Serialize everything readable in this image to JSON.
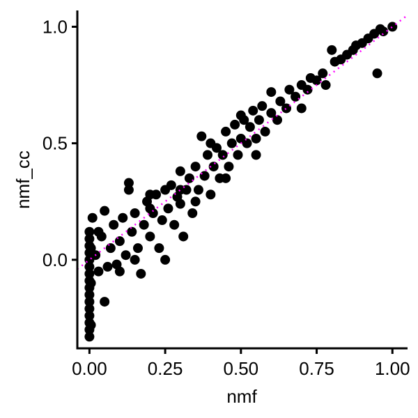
{
  "chart_data": {
    "type": "scatter",
    "x_label": "nmf",
    "y_label": "nmf_cc",
    "color": "#000000",
    "reference_line": {
      "slope": 1,
      "intercept": 0,
      "color": "#ff00ff"
    },
    "xlim": [
      -0.04,
      1.05
    ],
    "ylim": [
      -0.38,
      1.07
    ],
    "xticks": [
      {
        "value": 0,
        "label": "0.00"
      },
      {
        "value": 0.25,
        "label": "0.25"
      },
      {
        "value": 0.5,
        "label": "0.50"
      },
      {
        "value": 0.75,
        "label": "0.75"
      },
      {
        "value": 1,
        "label": "1.00"
      }
    ],
    "yticks": [
      {
        "value": 0,
        "label": "0.0"
      },
      {
        "value": 0.5,
        "label": "0.5"
      },
      {
        "value": 1,
        "label": "1.0"
      }
    ],
    "x": [
      0,
      0,
      0,
      0,
      0,
      0,
      0,
      0,
      0,
      0,
      0,
      0,
      0,
      0,
      0,
      0,
      0.005,
      0.005,
      0.005,
      0.02,
      0.03,
      0.04,
      0.05,
      0.01,
      0.03,
      0.05,
      0.06,
      0.07,
      0.08,
      0.09,
      0.1,
      0.11,
      0.12,
      0.13,
      0.13,
      0.14,
      0.15,
      0.16,
      0.17,
      0.18,
      0.19,
      0.2,
      0.21,
      0.22,
      0.23,
      0.24,
      0.25,
      0.25,
      0.26,
      0.27,
      0.28,
      0.29,
      0.3,
      0.3,
      0.31,
      0.32,
      0.33,
      0.34,
      0.35,
      0.36,
      0.37,
      0.38,
      0.39,
      0.4,
      0.41,
      0.42,
      0.43,
      0.44,
      0.45,
      0.46,
      0.47,
      0.48,
      0.49,
      0.5,
      0.51,
      0.52,
      0.53,
      0.54,
      0.55,
      0.56,
      0.57,
      0.58,
      0.6,
      0.62,
      0.63,
      0.65,
      0.66,
      0.68,
      0.7,
      0.7,
      0.72,
      0.73,
      0.75,
      0.77,
      0.78,
      0.8,
      0.81,
      0.83,
      0.85,
      0.87,
      0.88,
      0.9,
      0.92,
      0.94,
      0.95,
      0.96,
      0.97,
      1.0,
      0.2,
      0.35,
      0.45,
      0.55,
      0.15,
      0.1,
      0.6,
      0.5,
      0.4,
      0.3,
      0.2
    ],
    "values": [
      -0.33,
      -0.3,
      -0.27,
      -0.24,
      -0.21,
      -0.18,
      -0.15,
      -0.12,
      -0.09,
      -0.06,
      -0.03,
      0,
      0.03,
      0.06,
      0.09,
      0.12,
      -0.28,
      -0.1,
      0.05,
      0.02,
      -0.05,
      0.1,
      0.21,
      0.18,
      0.12,
      -0.18,
      -0.03,
      0.05,
      0.15,
      -0.02,
      0.08,
      0.18,
      0.02,
      0.33,
      0.3,
      0.12,
      0.2,
      0.05,
      -0.06,
      0.15,
      0.25,
      0.1,
      0.2,
      0.28,
      0.05,
      0.17,
      0.0,
      0.3,
      0.22,
      0.32,
      0.15,
      0.27,
      0.38,
      0.24,
      0.1,
      0.3,
      0.35,
      0.2,
      0.4,
      0.3,
      0.53,
      0.36,
      0.45,
      0.28,
      0.4,
      0.48,
      0.35,
      0.45,
      0.55,
      0.4,
      0.5,
      0.58,
      0.45,
      0.52,
      0.6,
      0.5,
      0.57,
      0.64,
      0.52,
      0.6,
      0.66,
      0.55,
      0.63,
      0.6,
      0.68,
      0.65,
      0.73,
      0.7,
      0.65,
      0.75,
      0.73,
      0.78,
      0.77,
      0.8,
      0.75,
      0.9,
      0.85,
      0.86,
      0.88,
      0.9,
      0.92,
      0.93,
      0.95,
      0.97,
      0.8,
      0.99,
      0.98,
      1.0,
      0.28,
      0.25,
      0.35,
      0.45,
      0.0,
      -0.05,
      0.72,
      0.62,
      0.5,
      0.3,
      0.22
    ]
  }
}
